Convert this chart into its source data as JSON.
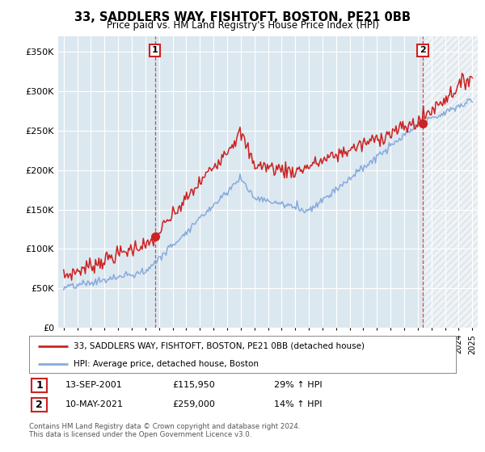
{
  "title": "33, SADDLERS WAY, FISHTOFT, BOSTON, PE21 0BB",
  "subtitle": "Price paid vs. HM Land Registry's House Price Index (HPI)",
  "legend_line1": "33, SADDLERS WAY, FISHTOFT, BOSTON, PE21 0BB (detached house)",
  "legend_line2": "HPI: Average price, detached house, Boston",
  "annotation1_date": "13-SEP-2001",
  "annotation1_price": "£115,950",
  "annotation1_hpi": "29% ↑ HPI",
  "annotation2_date": "10-MAY-2021",
  "annotation2_price": "£259,000",
  "annotation2_hpi": "14% ↑ HPI",
  "footer": "Contains HM Land Registry data © Crown copyright and database right 2024.\nThis data is licensed under the Open Government Licence v3.0.",
  "ylim": [
    0,
    370000
  ],
  "yticks": [
    0,
    50000,
    100000,
    150000,
    200000,
    250000,
    300000,
    350000
  ],
  "ytick_labels": [
    "£0",
    "£50K",
    "£100K",
    "£150K",
    "£200K",
    "£250K",
    "£300K",
    "£350K"
  ],
  "bg_color": "#ffffff",
  "plot_bg_color": "#dce8f0",
  "grid_color": "#ffffff",
  "red_color": "#cc2222",
  "blue_color": "#88aadd",
  "marker1_x": 2001.7,
  "marker1_y": 115950,
  "marker2_x": 2021.36,
  "marker2_y": 259000,
  "xlim_left": 1994.6,
  "xlim_right": 2025.4
}
